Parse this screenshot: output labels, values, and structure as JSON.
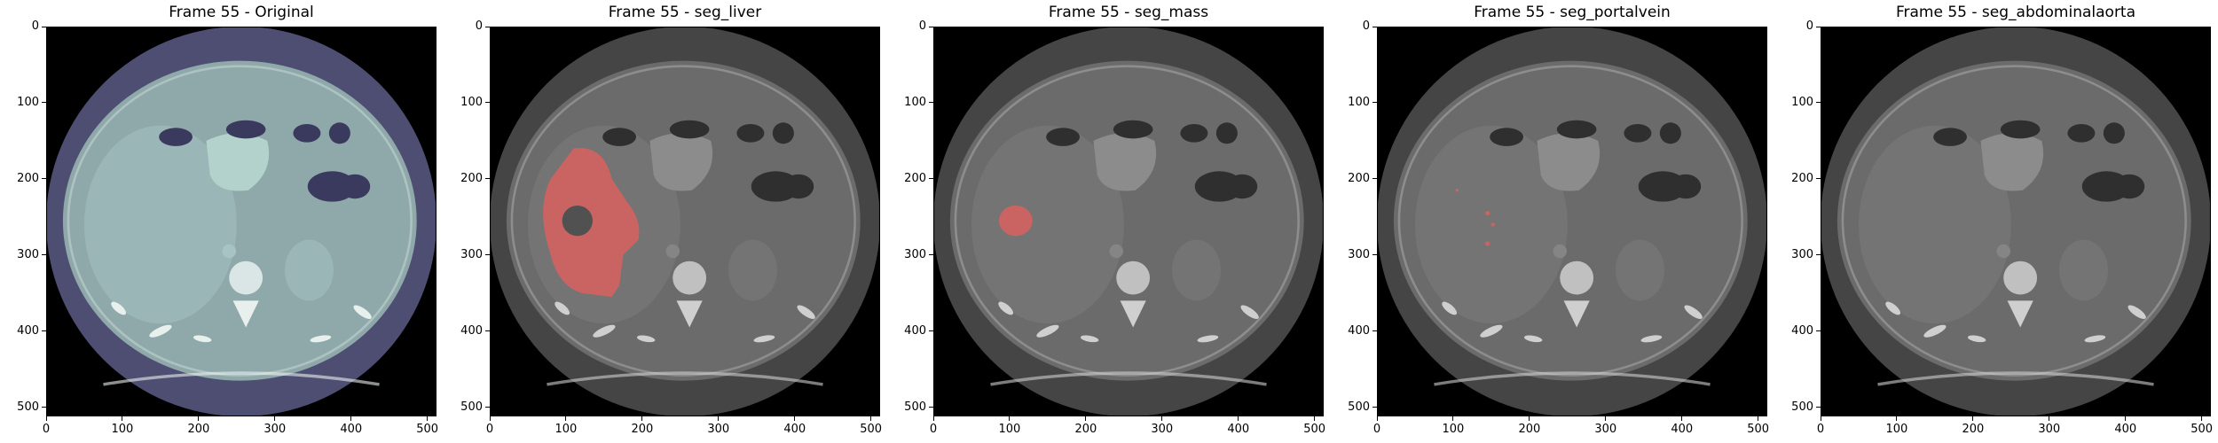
{
  "figure": {
    "panels": [
      {
        "title": "Frame 55 - Original",
        "mode": "original",
        "overlay_color": null
      },
      {
        "title": "Frame 55 - seg_liver",
        "mode": "gray",
        "overlay": "liver",
        "overlay_color": "#d9625f"
      },
      {
        "title": "Frame 55 - seg_mass",
        "mode": "gray",
        "overlay": "mass",
        "overlay_color": "#d9625f"
      },
      {
        "title": "Frame 55 - seg_portalvein",
        "mode": "gray",
        "overlay": "portalvein",
        "overlay_color": "#d9625f"
      },
      {
        "title": "Frame 55 - seg_abdominalaorta",
        "mode": "gray",
        "overlay": "none",
        "overlay_color": null
      }
    ],
    "axes": {
      "x_ticks": [
        0,
        100,
        200,
        300,
        400,
        500
      ],
      "y_ticks": [
        0,
        100,
        200,
        300,
        400,
        500
      ],
      "image_size": 512
    },
    "colors": {
      "original_body": "#8fa9ab",
      "original_rim": "#4e4e72",
      "gray_body": "#6b6b6b",
      "gray_rim": "#454545",
      "overlay": "#d9625f"
    }
  }
}
